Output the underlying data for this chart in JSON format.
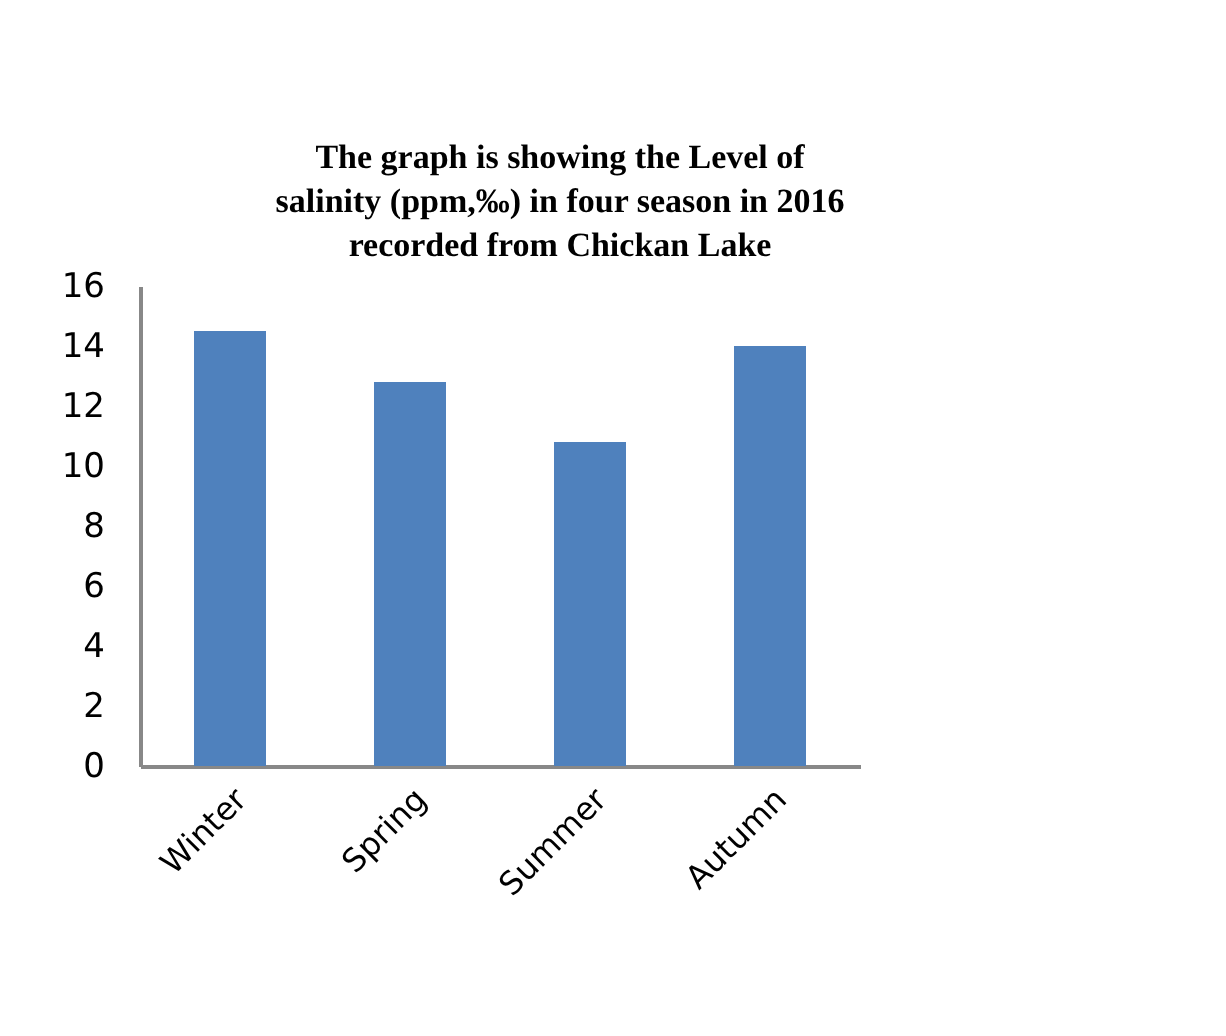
{
  "chart_data": {
    "type": "bar",
    "title": "The graph is showing the Level of\nsalinity (ppm,‰)   in  four season in 2016\nrecorded from Chickan Lake",
    "categories": [
      "Winter",
      "Spring",
      "Summer",
      "Autumn"
    ],
    "values": [
      14.5,
      12.8,
      10.8,
      14.0
    ],
    "color": "#4f81bd",
    "ylim": [
      0,
      16
    ],
    "yticks": [
      0,
      2,
      4,
      6,
      8,
      10,
      12,
      14,
      16
    ],
    "grid": false
  }
}
